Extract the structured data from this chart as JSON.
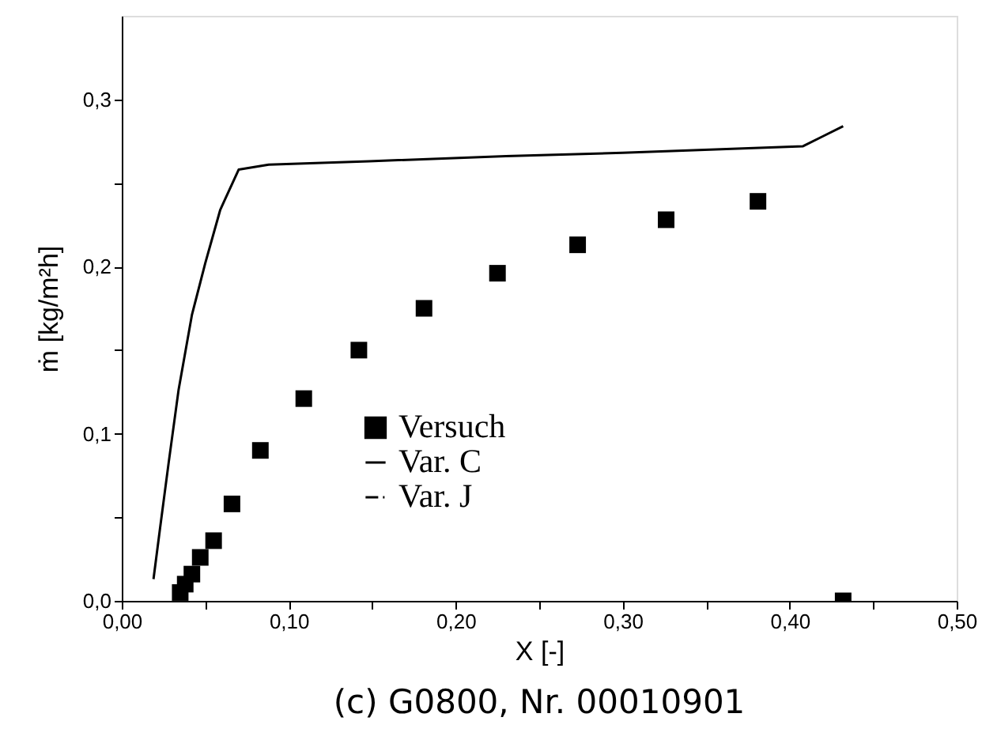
{
  "chart_data": {
    "type": "scatter",
    "xlabel": "X [-]",
    "ylabel": "ṁ [kg/m²h]",
    "annotations": [
      "(c) G0800, Nr. 00010901"
    ],
    "xlim": [
      0,
      0.5
    ],
    "ylim": [
      0,
      0.35
    ],
    "xticks": [
      {
        "value": 0,
        "label": "0,00"
      },
      {
        "value": 0.05,
        "label": null
      },
      {
        "value": 0.1,
        "label": "0,10"
      },
      {
        "value": 0.15,
        "label": null
      },
      {
        "value": 0.2,
        "label": "0,20"
      },
      {
        "value": 0.25,
        "label": null
      },
      {
        "value": 0.3,
        "label": "0,30"
      },
      {
        "value": 0.35,
        "label": null
      },
      {
        "value": 0.4,
        "label": "0,40"
      },
      {
        "value": 0.45,
        "label": null
      },
      {
        "value": 0.5,
        "label": "0,50"
      }
    ],
    "yticks": [
      {
        "value": 0,
        "label": "0,0"
      },
      {
        "value": 0.05,
        "label": null
      },
      {
        "value": 0.1,
        "label": "0,1"
      },
      {
        "value": 0.15,
        "label": null
      },
      {
        "value": 0.2,
        "label": "0,2"
      },
      {
        "value": 0.25,
        "label": null
      },
      {
        "value": 0.3,
        "label": "0,3"
      }
    ],
    "grid": false,
    "legend": "bottom left",
    "series": [
      {
        "name": "Versuch",
        "marker": "square",
        "color": "#000000",
        "x": [
          0.035,
          0.038,
          0.042,
          0.047,
          0.055,
          0.066,
          0.083,
          0.109,
          0.142,
          0.181,
          0.225,
          0.273,
          0.326,
          0.381,
          0.432
        ],
        "values": [
          0.005,
          0.01,
          0.016,
          0.026,
          0.036,
          0.058,
          0.09,
          0.121,
          0.15,
          0.175,
          0.196,
          0.213,
          0.228,
          0.239,
          0.0
        ]
      },
      {
        "name": "Var. C",
        "type": "line",
        "line_style": "solid",
        "color": "#000000",
        "x": [
          0.019,
          0.023,
          0.028,
          0.034,
          0.042,
          0.05,
          0.059,
          0.07,
          0.088,
          0.148,
          0.23,
          0.3,
          0.408,
          0.42,
          0.432
        ],
        "values": [
          0.013,
          0.044,
          0.082,
          0.126,
          0.171,
          0.202,
          0.234,
          0.258,
          0.261,
          0.263,
          0.266,
          0.268,
          0.272,
          0.278,
          0.284
        ]
      },
      {
        "name": "Var. J",
        "type": "line",
        "line_style": "dashdot",
        "color": "#000000"
      }
    ]
  }
}
